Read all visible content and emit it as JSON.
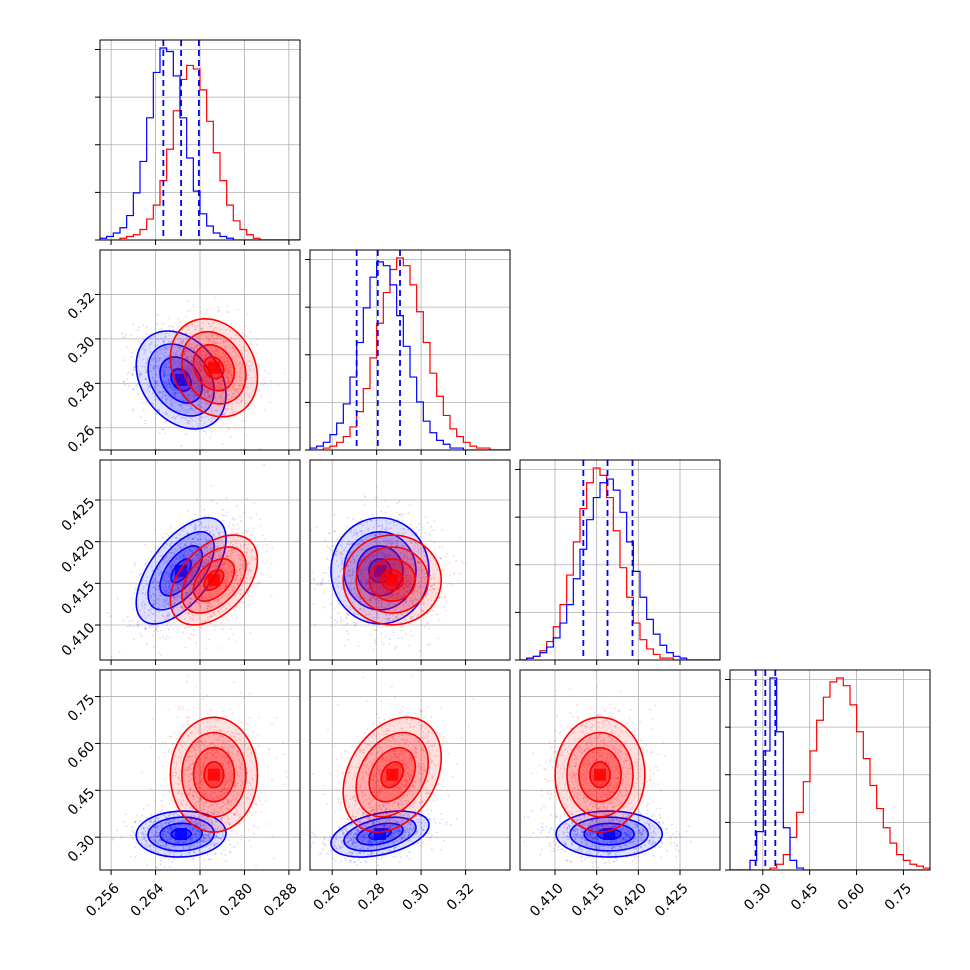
{
  "chart_data": {
    "type": "corner",
    "title": "",
    "colors": {
      "series_a": "#0000ff",
      "series_b": "#ff0000"
    },
    "grid": true,
    "legend": "none",
    "variables": [
      {
        "index": 0,
        "range": [
          0.254,
          0.29
        ],
        "ticks": [
          "0.256",
          "0.264",
          "0.272",
          "0.280",
          "0.288"
        ],
        "tick_values": [
          0.256,
          0.264,
          0.272,
          0.28,
          0.288
        ]
      },
      {
        "index": 1,
        "range": [
          0.25,
          0.34
        ],
        "ticks": [
          "0.26",
          "0.28",
          "0.30",
          "0.32"
        ],
        "tick_values": [
          0.26,
          0.28,
          0.3,
          0.32
        ]
      },
      {
        "index": 2,
        "range": [
          0.4058,
          0.4298
        ],
        "ticks": [
          "0.410",
          "0.415",
          "0.420",
          "0.425"
        ],
        "tick_values": [
          0.41,
          0.415,
          0.42,
          0.425
        ]
      },
      {
        "index": 3,
        "range": [
          0.195,
          0.835
        ],
        "ticks": [
          "0.30",
          "0.45",
          "0.60",
          "0.75"
        ],
        "tick_values": [
          0.3,
          0.45,
          0.6,
          0.75
        ]
      }
    ],
    "series": [
      {
        "color": "#0000ff",
        "mean": [
          0.2686,
          0.2815,
          0.4165,
          0.31
        ],
        "std": [
          0.0033,
          0.009,
          0.0026,
          0.03
        ],
        "quantiles": [
          [
            0.2654,
            0.2686,
            0.2718
          ],
          [
            0.271,
            0.2805,
            0.2905
          ],
          [
            0.4134,
            0.4163,
            0.4193
          ],
          [
            0.277,
            0.308,
            0.34
          ]
        ],
        "correlations": {
          "0-1": -0.3,
          "0-2": 0.6,
          "0-3": 0.05,
          "1-2": 0.0,
          "1-3": 0.4,
          "2-3": 0.0
        }
      },
      {
        "color": "#ff0000",
        "mean": [
          0.2745,
          0.287,
          0.4154,
          0.5
        ],
        "std": [
          0.0032,
          0.009,
          0.0022,
          0.075
        ],
        "correlations": {
          "0-1": -0.2,
          "0-2": 0.45,
          "0-3": 0.0,
          "1-2": 0.0,
          "1-3": 0.3,
          "2-3": 0.0
        }
      }
    ],
    "histograms": [
      {
        "bins": 30,
        "a_counts": [
          1,
          2,
          4,
          7,
          14,
          27,
          45,
          70,
          96,
          110,
          108,
          94,
          70,
          47,
          28,
          15,
          8,
          4,
          2,
          1,
          0,
          0,
          0,
          0,
          0,
          0,
          0,
          0,
          0,
          0
        ],
        "b_counts": [
          0,
          0,
          0,
          1,
          2,
          3,
          6,
          12,
          20,
          34,
          52,
          74,
          92,
          100,
          98,
          86,
          68,
          50,
          34,
          20,
          11,
          6,
          3,
          1,
          0,
          0,
          0,
          0,
          0,
          0
        ]
      },
      {
        "bins": 30,
        "a_counts": [
          1,
          2,
          4,
          8,
          14,
          24,
          38,
          56,
          74,
          90,
          98,
          96,
          86,
          70,
          54,
          38,
          25,
          15,
          9,
          5,
          3,
          1,
          1,
          0,
          0,
          0,
          0,
          0,
          0,
          0
        ],
        "b_counts": [
          0,
          0,
          1,
          2,
          4,
          7,
          12,
          20,
          32,
          48,
          66,
          82,
          94,
          100,
          96,
          86,
          72,
          56,
          40,
          28,
          18,
          11,
          7,
          4,
          2,
          1,
          1,
          0,
          0,
          0
        ]
      },
      {
        "bins": 30,
        "a_counts": [
          0,
          1,
          2,
          4,
          7,
          12,
          20,
          30,
          44,
          60,
          76,
          88,
          96,
          98,
          92,
          80,
          64,
          48,
          34,
          22,
          14,
          8,
          4,
          2,
          1,
          0,
          0,
          0,
          0,
          0
        ],
        "b_counts": [
          0,
          1,
          2,
          5,
          10,
          18,
          30,
          46,
          64,
          82,
          96,
          104,
          100,
          88,
          70,
          50,
          34,
          20,
          11,
          6,
          3,
          1,
          1,
          0,
          0,
          0,
          0,
          0,
          0,
          0
        ]
      },
      {
        "bins": 30,
        "a_counts": [
          0,
          0,
          0,
          5,
          20,
          62,
          100,
          72,
          22,
          5,
          1,
          0,
          0,
          0,
          0,
          0,
          0,
          0,
          0,
          0,
          0,
          0,
          0,
          0,
          0,
          0,
          0,
          0,
          0,
          0
        ],
        "b_counts": [
          0,
          0,
          0,
          0,
          0,
          0,
          1,
          3,
          8,
          17,
          30,
          46,
          62,
          78,
          90,
          98,
          100,
          96,
          86,
          72,
          58,
          44,
          32,
          22,
          14,
          8,
          5,
          3,
          2,
          1
        ]
      }
    ]
  }
}
